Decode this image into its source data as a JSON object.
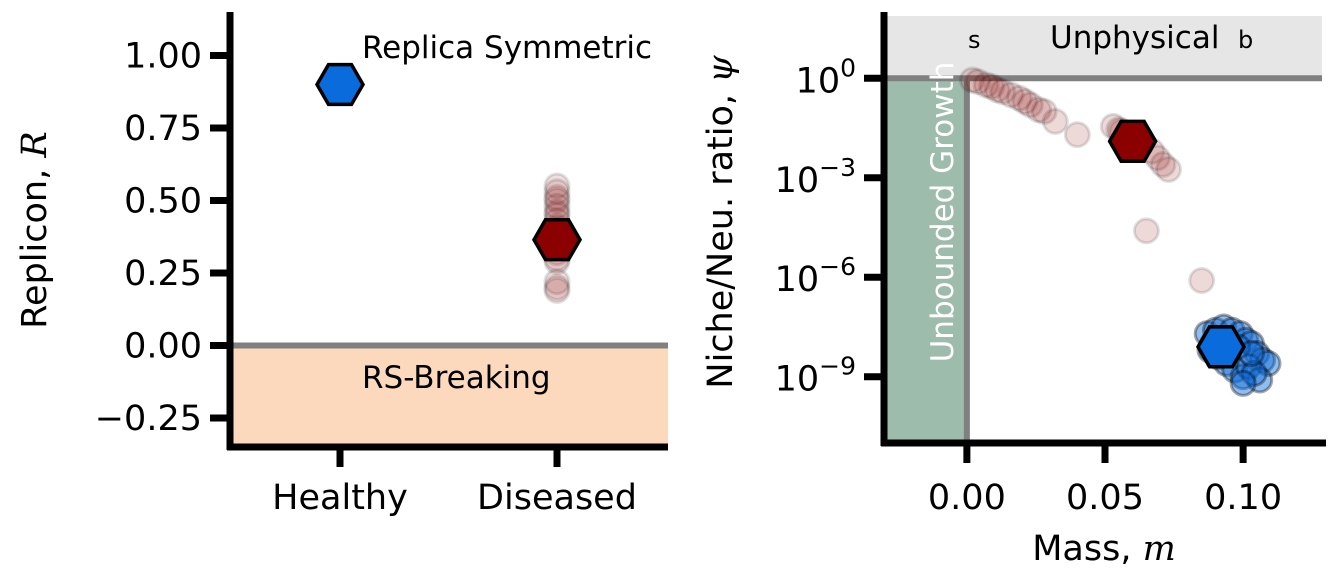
{
  "chart_data": [
    {
      "type": "scatter",
      "panel": "left",
      "ylabel": "Replicon, ",
      "ylabel_symbol": "R",
      "categories": [
        "Healthy",
        "Diseased"
      ],
      "ylim": [
        -0.35,
        1.15
      ],
      "yticks": [
        -0.25,
        0.0,
        0.25,
        0.5,
        0.75,
        1.0
      ],
      "ytick_labels": [
        "−0.25",
        "0.00",
        "0.25",
        "0.50",
        "0.75",
        "1.00"
      ],
      "threshold": 0.0,
      "annotations": {
        "upper": "Replica Symmetric",
        "lower": "RS-Breaking"
      },
      "series": [
        {
          "color": "#0a6bdc",
          "highlight": {
            "category": "Healthy",
            "y": 0.9
          },
          "samples": []
        },
        {
          "color": "#8b0000",
          "highlight": {
            "category": "Diseased",
            "y": 0.365
          },
          "samples": [
            0.55,
            0.53,
            0.51,
            0.5,
            0.48,
            0.46,
            0.45,
            0.43,
            0.41,
            0.4,
            0.38,
            0.36,
            0.34,
            0.32,
            0.3,
            0.29,
            0.22,
            0.2,
            0.19
          ]
        }
      ]
    },
    {
      "type": "scatter",
      "panel": "right",
      "xlabel": "Mass, ",
      "xlabel_symbol": "m",
      "ylabel": "Niche/Neu. ratio, ",
      "ylabel_symbol": "ψ",
      "xlim": [
        -0.03,
        0.13
      ],
      "xticks": [
        0.0,
        0.05,
        0.1
      ],
      "xtick_labels": [
        "0.00",
        "0.05",
        "0.10"
      ],
      "ylog_exponent_range": [
        -11.0,
        2.0
      ],
      "yticks_exponent": [
        0,
        -3,
        -6,
        -9
      ],
      "ytick_base": "10",
      "ytick_exponents": [
        "0",
        "−3",
        "−6",
        "−9"
      ],
      "yscale": "log",
      "threshold_x": 0.0,
      "threshold_y": 1.0,
      "annotations": {
        "top": "Unphysical",
        "left": "Unbounded Growth",
        "corner_left": "s",
        "corner_right": "b"
      },
      "series": [
        {
          "color": "#8b0000",
          "highlight": {
            "x": 0.06,
            "log10y": -1.9
          },
          "samples": [
            [
              0.002,
              -0.05
            ],
            [
              0.004,
              -0.1
            ],
            [
              0.007,
              -0.2
            ],
            [
              0.009,
              -0.25
            ],
            [
              0.011,
              -0.35
            ],
            [
              0.013,
              -0.4
            ],
            [
              0.016,
              -0.5
            ],
            [
              0.019,
              -0.6
            ],
            [
              0.021,
              -0.7
            ],
            [
              0.023,
              -0.8
            ],
            [
              0.026,
              -0.95
            ],
            [
              0.028,
              -1.0
            ],
            [
              0.032,
              -1.3
            ],
            [
              0.04,
              -1.7
            ],
            [
              0.053,
              -1.45
            ],
            [
              0.055,
              -1.55
            ],
            [
              0.056,
              -1.6
            ],
            [
              0.058,
              -1.8
            ],
            [
              0.06,
              -1.9
            ],
            [
              0.063,
              -2.0
            ],
            [
              0.067,
              -2.2
            ],
            [
              0.069,
              -2.4
            ],
            [
              0.071,
              -2.6
            ],
            [
              0.073,
              -2.75
            ],
            [
              0.065,
              -4.6
            ],
            [
              0.085,
              -6.1
            ]
          ]
        },
        {
          "color": "#0a6bdc",
          "highlight": {
            "x": 0.092,
            "log10y": -8.1
          },
          "samples": [
            [
              0.087,
              -7.7
            ],
            [
              0.09,
              -7.6
            ],
            [
              0.093,
              -7.5
            ],
            [
              0.096,
              -7.6
            ],
            [
              0.099,
              -7.7
            ],
            [
              0.101,
              -7.9
            ],
            [
              0.103,
              -8.0
            ],
            [
              0.105,
              -8.3
            ],
            [
              0.107,
              -8.5
            ],
            [
              0.109,
              -8.6
            ],
            [
              0.088,
              -8.2
            ],
            [
              0.091,
              -8.4
            ],
            [
              0.094,
              -8.6
            ],
            [
              0.097,
              -8.8
            ],
            [
              0.1,
              -9.0
            ],
            [
              0.098,
              -8.1
            ],
            [
              0.095,
              -8.2
            ],
            [
              0.102,
              -8.7
            ],
            [
              0.106,
              -9.1
            ],
            [
              0.104,
              -8.9
            ],
            [
              0.092,
              -7.9
            ],
            [
              0.089,
              -8.0
            ],
            [
              0.1,
              -9.2
            ],
            [
              0.103,
              -8.3
            ]
          ]
        }
      ]
    }
  ]
}
